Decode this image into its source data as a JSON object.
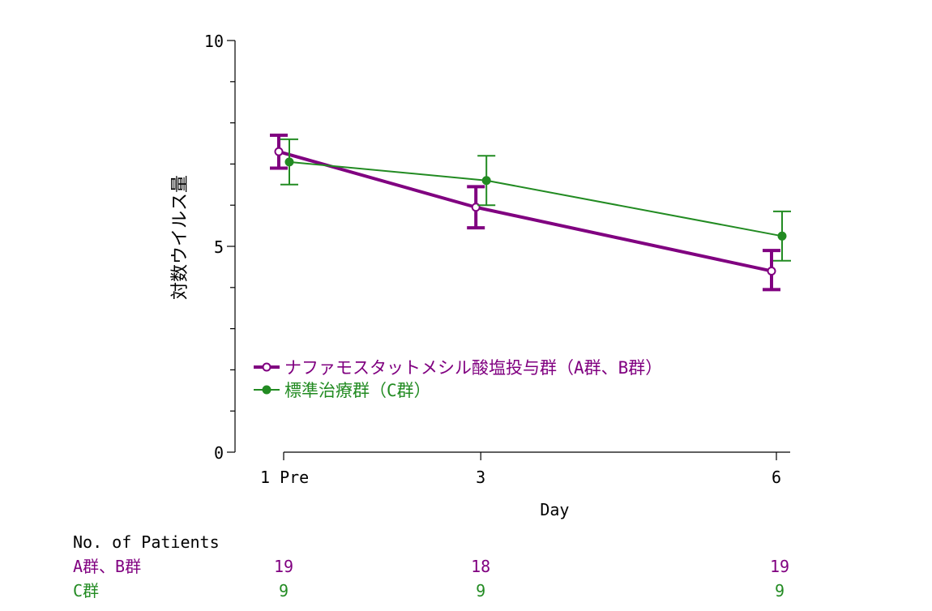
{
  "chart_data": {
    "type": "line",
    "title": "",
    "xlabel": "Day",
    "ylabel": "対数ウイルス量",
    "x_ticks": [
      {
        "x": 1,
        "label": "1 Pre"
      },
      {
        "x": 3,
        "label": "3"
      },
      {
        "x": 6,
        "label": "6"
      }
    ],
    "y_ticks": [
      0,
      5,
      10
    ],
    "xlim": [
      0.5,
      6.1
    ],
    "ylim": [
      0,
      10
    ],
    "grid": false,
    "legend_position": "center-left",
    "series": [
      {
        "name": "ナファモスタットメシル酸塩投与群（A群、B群）",
        "color": "#800080",
        "marker": "open-circle",
        "points": [
          {
            "x": 1,
            "y": 7.3,
            "low": 6.9,
            "high": 7.7
          },
          {
            "x": 3,
            "y": 5.95,
            "low": 5.45,
            "high": 6.45
          },
          {
            "x": 6,
            "y": 4.4,
            "low": 3.95,
            "high": 4.9
          }
        ]
      },
      {
        "name": "標準治療群（C群）",
        "color": "#228B22",
        "marker": "filled-circle",
        "points": [
          {
            "x": 1,
            "y": 7.05,
            "low": 6.5,
            "high": 7.6
          },
          {
            "x": 3,
            "y": 6.6,
            "low": 6.0,
            "high": 7.2
          },
          {
            "x": 6,
            "y": 5.25,
            "low": 4.65,
            "high": 5.85
          }
        ]
      }
    ]
  },
  "patients_table": {
    "heading": "No. of Patients",
    "rows": [
      {
        "label": "A群、B群",
        "color": "#800080",
        "counts": [
          "19",
          "18",
          "19"
        ]
      },
      {
        "label": "C群",
        "color": "#228B22",
        "counts": [
          "9",
          "9",
          "9"
        ]
      }
    ]
  }
}
